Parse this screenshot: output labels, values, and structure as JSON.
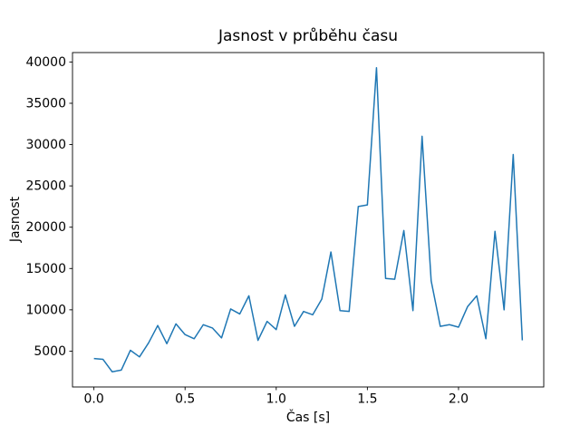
{
  "figure": {
    "background": "#ffffff"
  },
  "chart_data": {
    "type": "line",
    "title": "Jasnost v průběhu času",
    "xlabel": "Čas [s]",
    "ylabel": "Jasnost",
    "line_color": "#1f77b4",
    "grid": false,
    "xlim": [
      -0.1175,
      2.4675
    ],
    "ylim": [
      660,
      41140
    ],
    "xticks": [
      {
        "v": 0.0,
        "label": "0.0"
      },
      {
        "v": 0.5,
        "label": "0.5"
      },
      {
        "v": 1.0,
        "label": "1.0"
      },
      {
        "v": 1.5,
        "label": "1.5"
      },
      {
        "v": 2.0,
        "label": "2.0"
      }
    ],
    "yticks": [
      {
        "v": 5000,
        "label": "5000"
      },
      {
        "v": 10000,
        "label": "10000"
      },
      {
        "v": 15000,
        "label": "15000"
      },
      {
        "v": 20000,
        "label": "20000"
      },
      {
        "v": 25000,
        "label": "25000"
      },
      {
        "v": 30000,
        "label": "30000"
      },
      {
        "v": 35000,
        "label": "35000"
      },
      {
        "v": 40000,
        "label": "40000"
      }
    ],
    "x": [
      0.0,
      0.05,
      0.1,
      0.15,
      0.2,
      0.25,
      0.3,
      0.35,
      0.4,
      0.45,
      0.5,
      0.55,
      0.6,
      0.65,
      0.7,
      0.75,
      0.8,
      0.85,
      0.9,
      0.95,
      1.0,
      1.05,
      1.1,
      1.15,
      1.2,
      1.25,
      1.3,
      1.35,
      1.4,
      1.45,
      1.5,
      1.55,
      1.6,
      1.65,
      1.7,
      1.75,
      1.8,
      1.85,
      1.9,
      1.95,
      2.0,
      2.05,
      2.1,
      2.15,
      2.2,
      2.25,
      2.3,
      2.35
    ],
    "y": [
      4100,
      4000,
      2500,
      2700,
      5100,
      4300,
      6000,
      8100,
      5900,
      8300,
      7000,
      6500,
      8200,
      7800,
      6600,
      10100,
      9500,
      11700,
      6300,
      8600,
      7600,
      11800,
      8000,
      9800,
      9400,
      11300,
      17000,
      9900,
      9800,
      22500,
      22700,
      39300,
      13800,
      13700,
      19600,
      9900,
      31000,
      13500,
      8000,
      8200,
      7900,
      10400,
      11700,
      6500,
      19500,
      10000,
      28800,
      6300
    ]
  }
}
